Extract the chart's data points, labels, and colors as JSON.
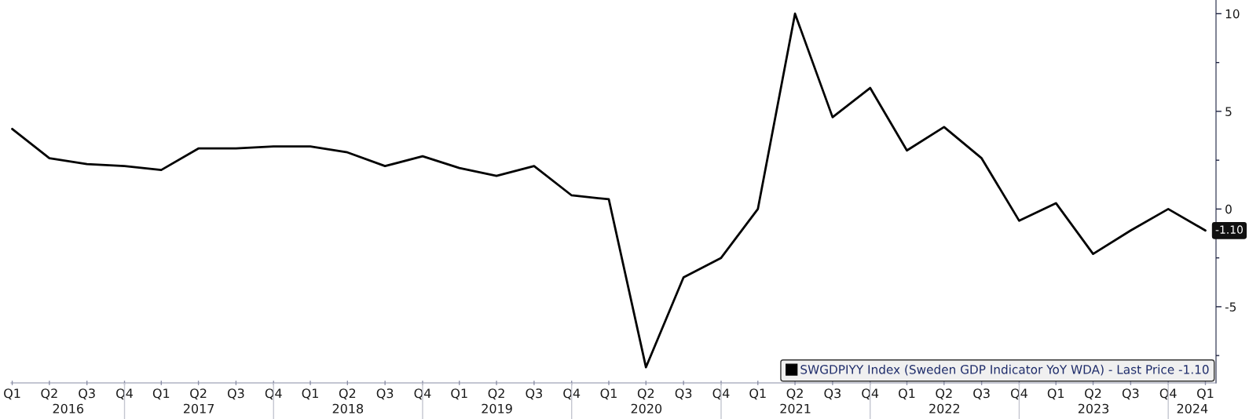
{
  "chart_data": {
    "type": "line",
    "x": [
      "2016-03-31",
      "2016-06-30",
      "2016-09-30",
      "2016-12-31",
      "2017-03-31",
      "2017-06-30",
      "2017-09-30",
      "2017-12-31",
      "2018-03-31",
      "2018-06-30",
      "2018-09-30",
      "2018-12-31",
      "2019-03-31",
      "2019-06-30",
      "2019-09-30",
      "2019-12-31",
      "2020-03-31",
      "2020-06-30",
      "2020-09-30",
      "2020-12-31",
      "2021-03-31",
      "2021-06-30",
      "2021-09-30",
      "2021-12-31",
      "2022-03-31",
      "2022-06-30",
      "2022-09-30",
      "2022-12-31",
      "2023-03-31",
      "2023-06-30",
      "2023-09-30",
      "2023-12-31",
      "2024-03-31"
    ],
    "series": [
      {
        "name": "SWGDPIYY Index (Sweden GDP Indicator YoY WDA) - Last Price -1.10",
        "color": "#000000",
        "values": [
          4.1,
          2.6,
          2.3,
          2.2,
          2.0,
          3.1,
          3.1,
          3.2,
          3.2,
          2.9,
          2.2,
          2.7,
          2.1,
          1.7,
          2.2,
          0.7,
          0.5,
          -8.1,
          -3.5,
          -2.5,
          0.0,
          10.0,
          4.7,
          6.2,
          3.0,
          4.2,
          2.6,
          -0.6,
          0.3,
          -2.3,
          -1.1,
          0.0,
          -1.1
        ],
        "value_labels": [
          null,
          null,
          null,
          null,
          null,
          null,
          null,
          null,
          null,
          null,
          null,
          null,
          null,
          null,
          null,
          null,
          null,
          null,
          null,
          null,
          null,
          null,
          null,
          null,
          null,
          null,
          null,
          null,
          null,
          null,
          null,
          null,
          "-1.10"
        ]
      }
    ],
    "xlim": [
      "2016-03-28",
      "2024-04-26"
    ],
    "xticks": [
      {
        "value": "2016-03-31",
        "label": "Q1"
      },
      {
        "value": "2016-06-30",
        "label": "Q2"
      },
      {
        "value": "2016-09-30",
        "label": "Q3"
      },
      {
        "value": "2016-12-31",
        "label": "Q4"
      },
      {
        "value": "2017-03-31",
        "label": "Q1"
      },
      {
        "value": "2017-06-30",
        "label": "Q2"
      },
      {
        "value": "2017-09-30",
        "label": "Q3"
      },
      {
        "value": "2017-12-31",
        "label": "Q4"
      },
      {
        "value": "2018-03-31",
        "label": "Q1"
      },
      {
        "value": "2018-06-30",
        "label": "Q2"
      },
      {
        "value": "2018-09-30",
        "label": "Q3"
      },
      {
        "value": "2018-12-31",
        "label": "Q4"
      },
      {
        "value": "2019-03-31",
        "label": "Q1"
      },
      {
        "value": "2019-06-30",
        "label": "Q2"
      },
      {
        "value": "2019-09-30",
        "label": "Q3"
      },
      {
        "value": "2019-12-31",
        "label": "Q4"
      },
      {
        "value": "2020-03-31",
        "label": "Q1"
      },
      {
        "value": "2020-06-30",
        "label": "Q2"
      },
      {
        "value": "2020-09-30",
        "label": "Q3"
      },
      {
        "value": "2020-12-31",
        "label": "Q4"
      },
      {
        "value": "2021-03-31",
        "label": "Q1"
      },
      {
        "value": "2021-06-30",
        "label": "Q2"
      },
      {
        "value": "2021-09-30",
        "label": "Q3"
      },
      {
        "value": "2021-12-31",
        "label": "Q4"
      },
      {
        "value": "2022-03-31",
        "label": "Q1"
      },
      {
        "value": "2022-06-30",
        "label": "Q2"
      },
      {
        "value": "2022-09-30",
        "label": "Q3"
      },
      {
        "value": "2022-12-31",
        "label": "Q4"
      },
      {
        "value": "2023-03-31",
        "label": "Q1"
      },
      {
        "value": "2023-06-30",
        "label": "Q2"
      },
      {
        "value": "2023-09-30",
        "label": "Q3"
      },
      {
        "value": "2023-12-31",
        "label": "Q4"
      },
      {
        "value": "2024-03-31",
        "label": "Q1"
      }
    ],
    "x2lim": [
      "2016-03-28",
      "2024-04-26"
    ],
    "x2ticks": [
      {
        "value": "2016-08-15",
        "label": "2016"
      },
      {
        "value": "2016-12-31",
        "label": null
      },
      {
        "value": "2017-07-01",
        "label": "2017"
      },
      {
        "value": "2017-12-31",
        "label": null
      },
      {
        "value": "2018-07-01",
        "label": "2018"
      },
      {
        "value": "2018-12-31",
        "label": null
      },
      {
        "value": "2019-07-01",
        "label": "2019"
      },
      {
        "value": "2019-12-31",
        "label": null
      },
      {
        "value": "2020-07-01",
        "label": "2020"
      },
      {
        "value": "2020-12-31",
        "label": null
      },
      {
        "value": "2021-07-01",
        "label": "2021"
      },
      {
        "value": "2021-12-31",
        "label": null
      },
      {
        "value": "2022-07-01",
        "label": "2022"
      },
      {
        "value": "2022-12-31",
        "label": null
      },
      {
        "value": "2023-07-01",
        "label": "2023"
      },
      {
        "value": "2023-12-31",
        "label": null
      },
      {
        "value": "2024-02-28",
        "label": "2024"
      }
    ],
    "ylim": [
      -8.9,
      10.7
    ],
    "yticks": [
      {
        "value": -7.5,
        "label": null
      },
      -5,
      {
        "value": -2.5,
        "label": null
      },
      0,
      {
        "value": 2.5,
        "label": null
      },
      5,
      {
        "value": 7.5,
        "label": null
      },
      10
    ],
    "legend": "bottom right"
  }
}
